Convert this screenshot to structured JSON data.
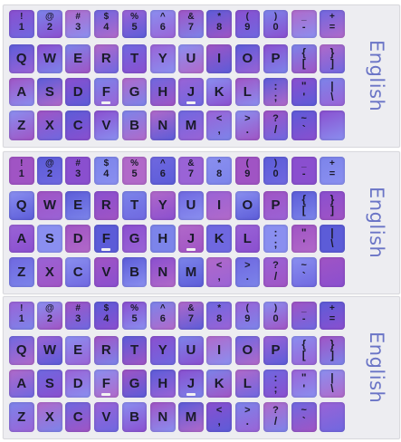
{
  "sheets": [
    {
      "language_label": "English"
    },
    {
      "language_label": "English"
    },
    {
      "language_label": "English"
    }
  ],
  "rows": [
    [
      {
        "top": "!",
        "bot": "1"
      },
      {
        "top": "@",
        "bot": "2"
      },
      {
        "top": "#",
        "bot": "3"
      },
      {
        "top": "$",
        "bot": "4"
      },
      {
        "top": "%",
        "bot": "5"
      },
      {
        "top": "^",
        "bot": "6"
      },
      {
        "top": "&",
        "bot": "7"
      },
      {
        "top": "*",
        "bot": "8"
      },
      {
        "top": "(",
        "bot": "9"
      },
      {
        "top": ")",
        "bot": "0"
      },
      {
        "top": "_",
        "bot": "-"
      },
      {
        "top": "+",
        "bot": "="
      }
    ],
    [
      {
        "main": "Q"
      },
      {
        "main": "W"
      },
      {
        "main": "E"
      },
      {
        "main": "R"
      },
      {
        "main": "T"
      },
      {
        "main": "Y"
      },
      {
        "main": "U"
      },
      {
        "main": "I"
      },
      {
        "main": "O"
      },
      {
        "main": "P"
      },
      {
        "top": "{",
        "bot": "["
      },
      {
        "top": "}",
        "bot": "]"
      }
    ],
    [
      {
        "main": "A"
      },
      {
        "main": "S"
      },
      {
        "main": "D"
      },
      {
        "main": "F",
        "bump": true
      },
      {
        "main": "G"
      },
      {
        "main": "H"
      },
      {
        "main": "J",
        "bump": true
      },
      {
        "main": "K"
      },
      {
        "main": "L"
      },
      {
        "top": ":",
        "bot": ";"
      },
      {
        "top": "\"",
        "bot": "'"
      },
      {
        "top": "|",
        "bot": "\\"
      }
    ],
    [
      {
        "main": "Z"
      },
      {
        "main": "X"
      },
      {
        "main": "C"
      },
      {
        "main": "V"
      },
      {
        "main": "B"
      },
      {
        "main": "N"
      },
      {
        "main": "M"
      },
      {
        "top": "<",
        "bot": ","
      },
      {
        "top": ">",
        "bot": "."
      },
      {
        "top": "?",
        "bot": "/"
      },
      {
        "top": "~",
        "bot": "`"
      },
      {
        "main": ""
      }
    ]
  ],
  "colors": {
    "sheet_background": "#ededf1",
    "label": "#6a74c6",
    "key_palette": [
      "#8a4fcf",
      "#6f68e0",
      "#a054c4",
      "#7c84ea",
      "#9a63d6",
      "#5c5cd8",
      "#b169c9",
      "#8a8ff0"
    ]
  }
}
